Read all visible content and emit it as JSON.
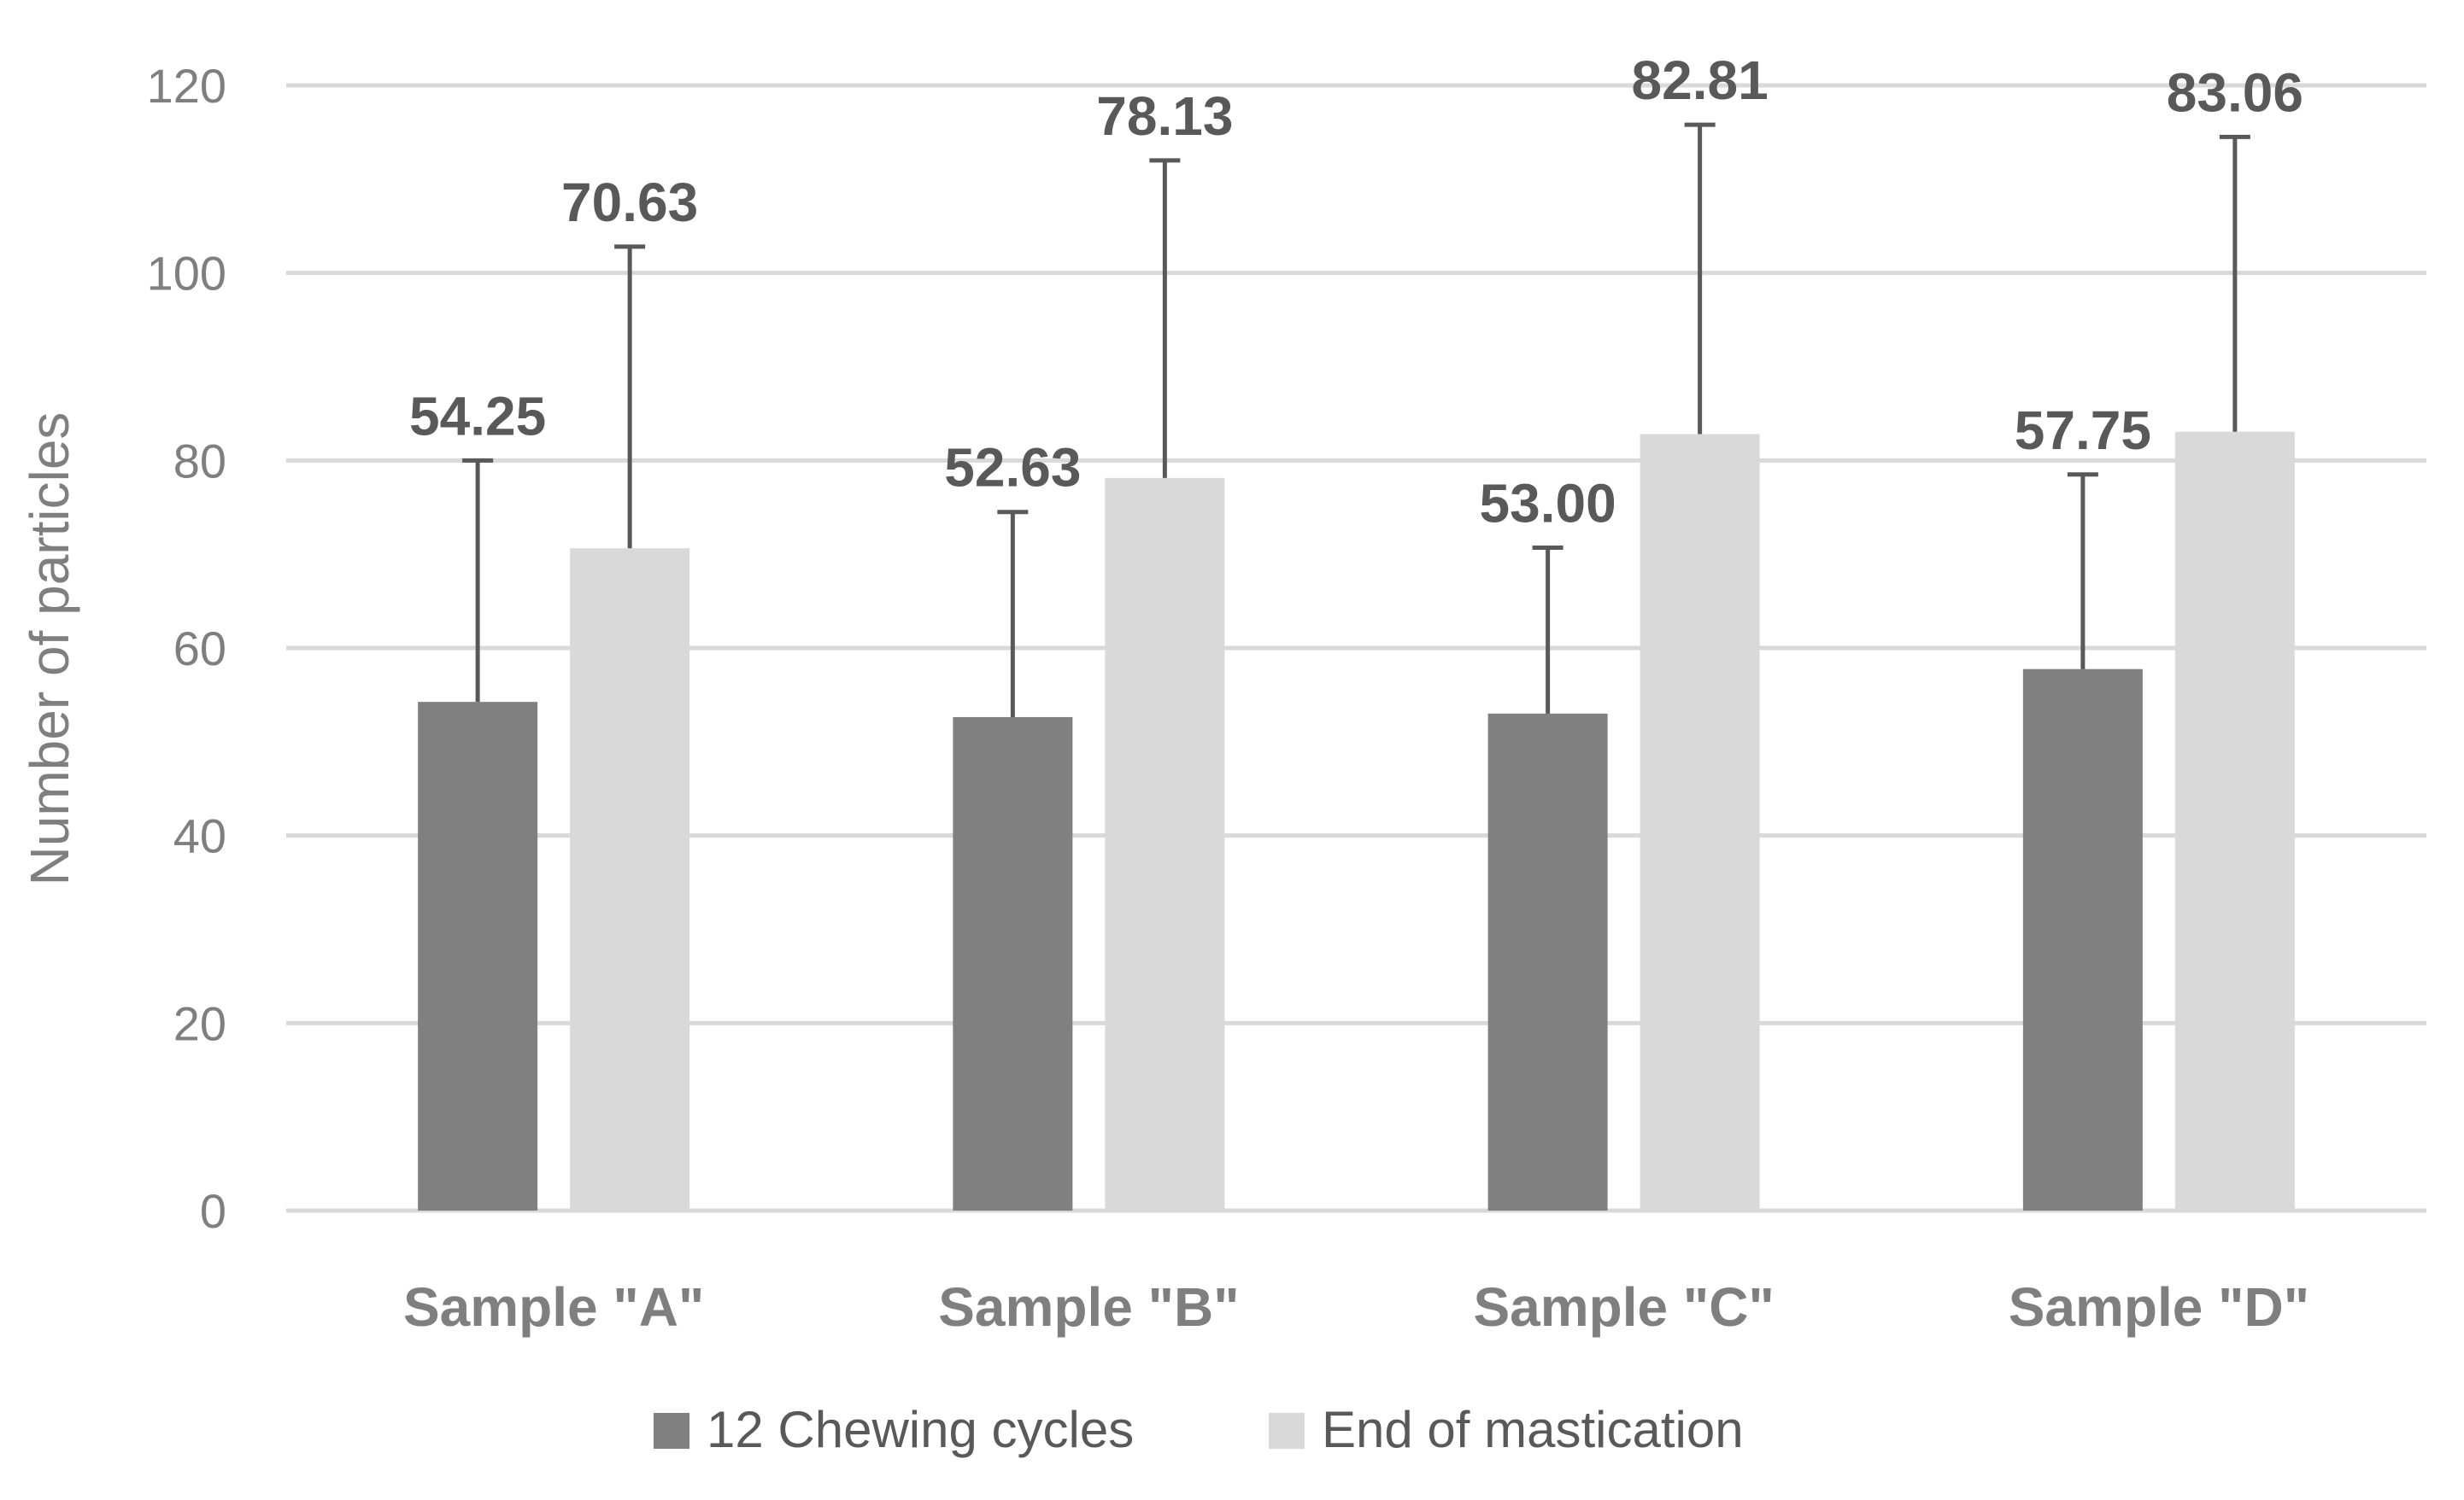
{
  "chart_data": {
    "type": "bar",
    "title": "",
    "xlabel": "",
    "ylabel": "Number of particles",
    "ylim": [
      0,
      120
    ],
    "yticks": [
      0,
      20,
      40,
      60,
      80,
      100,
      120
    ],
    "grid": true,
    "legend_position": "bottom",
    "categories": [
      "Sample \"A\"",
      "Sample \"B\"",
      "Sample \"C\"",
      "Sample \"D\""
    ],
    "series": [
      {
        "name": "12 Chewing cycles",
        "color": "#808080",
        "values": [
          54.25,
          52.63,
          53.0,
          57.75
        ],
        "labels": [
          "54.25",
          "52.63",
          "53.00",
          "57.75"
        ],
        "error_plus": [
          25.75,
          21.87,
          17.7,
          20.75
        ]
      },
      {
        "name": "End of mastication",
        "color": "#d9d9d9",
        "values": [
          70.63,
          78.13,
          82.81,
          83.06
        ],
        "labels": [
          "70.63",
          "78.13",
          "82.81",
          "83.06"
        ],
        "error_plus": [
          32.17,
          33.87,
          32.99,
          31.44
        ]
      }
    ]
  }
}
